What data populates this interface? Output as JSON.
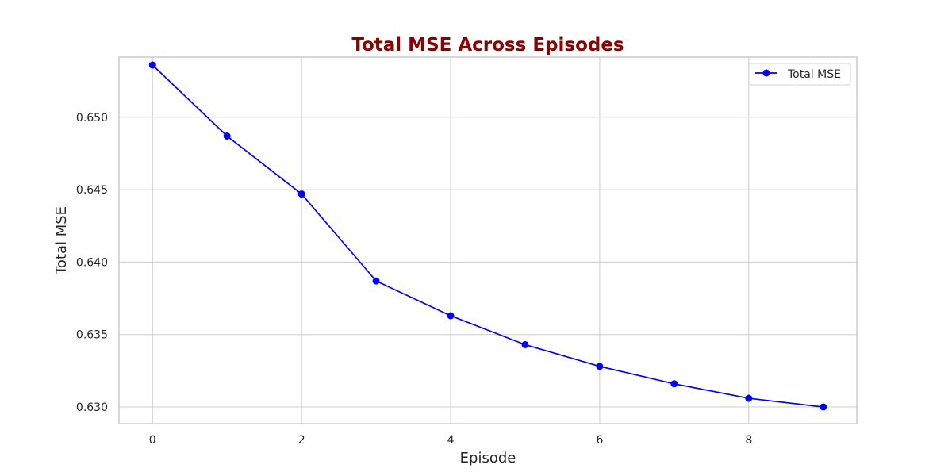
{
  "chart_data": {
    "type": "line",
    "title": "Total MSE Across Episodes",
    "xlabel": "Episode",
    "ylabel": "Total MSE",
    "x": [
      0,
      1,
      2,
      3,
      4,
      5,
      6,
      7,
      8,
      9
    ],
    "series": [
      {
        "name": "Total MSE",
        "values": [
          0.6536,
          0.6487,
          0.6447,
          0.6387,
          0.6363,
          0.6343,
          0.6328,
          0.6316,
          0.6306,
          0.63
        ],
        "color": "#0000ff",
        "marker": "circle"
      }
    ],
    "xlim": [
      -0.45,
      9.45
    ],
    "ylim": [
      0.62885,
      0.65415
    ],
    "xticks": [
      0,
      2,
      4,
      6,
      8
    ],
    "xtick_labels": [
      "0",
      "2",
      "4",
      "6",
      "8"
    ],
    "yticks": [
      0.63,
      0.635,
      0.64,
      0.645,
      0.65
    ],
    "ytick_labels": [
      "0.630",
      "0.635",
      "0.640",
      "0.645",
      "0.650"
    ],
    "grid": true,
    "legend_position": "top-right",
    "title_color": "#8b0000"
  }
}
